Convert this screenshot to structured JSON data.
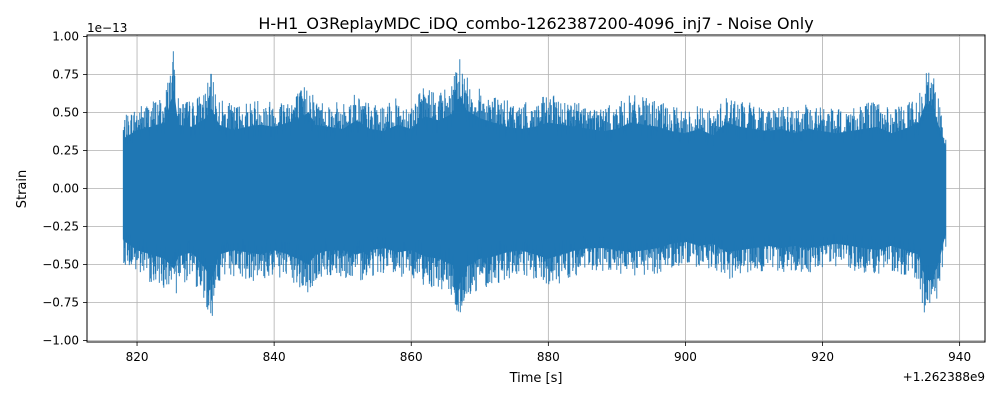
{
  "chart_data": {
    "type": "line",
    "title": "H-H1_O3ReplayMDC_iDQ_combo-1262387200-4096_inj7 - Noise Only",
    "xlabel": "Time [s]",
    "ylabel": "Strain",
    "x_offset_label": "+1.262388e9",
    "y_scale_label": "1e−13",
    "xlim": [
      812.7,
      943.7
    ],
    "ylim": [
      -1.01,
      1.01
    ],
    "x_ticks": [
      820,
      840,
      860,
      880,
      900,
      920,
      940
    ],
    "x_tick_labels": [
      "820",
      "840",
      "860",
      "880",
      "900",
      "920",
      "940"
    ],
    "y_ticks": [
      -1.0,
      -0.75,
      -0.5,
      -0.25,
      0.0,
      0.25,
      0.5,
      0.75,
      1.0
    ],
    "y_tick_labels": [
      "−1.00",
      "−0.75",
      "−0.50",
      "−0.25",
      "0.00",
      "0.25",
      "0.50",
      "0.75",
      "1.00"
    ],
    "grid": true,
    "line_color": "#1f77b4",
    "series": [
      {
        "x_range": [
          818.0,
          938.0
        ],
        "envelope": {
          "x": [
            818,
            820,
            822,
            824,
            825.4,
            826,
            828,
            830,
            830.8,
            832,
            834,
            836,
            838,
            840,
            842,
            844,
            845,
            846,
            848,
            850,
            852,
            854,
            856,
            858,
            860,
            862,
            864,
            866,
            867.1,
            868,
            870,
            872,
            874,
            876,
            878,
            880,
            882,
            884,
            886,
            888,
            890,
            892,
            894,
            896,
            898,
            900,
            902,
            904,
            906,
            908,
            910,
            912,
            914,
            916,
            918,
            920,
            922,
            924,
            926,
            928,
            930,
            932,
            934,
            935,
            936,
            937,
            938
          ],
          "upper": [
            0.47,
            0.55,
            0.58,
            0.62,
            0.93,
            0.6,
            0.58,
            0.66,
            0.76,
            0.6,
            0.55,
            0.58,
            0.6,
            0.58,
            0.62,
            0.66,
            0.72,
            0.6,
            0.58,
            0.56,
            0.64,
            0.56,
            0.54,
            0.6,
            0.56,
            0.68,
            0.64,
            0.7,
            0.88,
            0.74,
            0.66,
            0.62,
            0.58,
            0.56,
            0.58,
            0.62,
            0.6,
            0.58,
            0.56,
            0.54,
            0.56,
            0.62,
            0.6,
            0.58,
            0.54,
            0.52,
            0.56,
            0.5,
            0.62,
            0.58,
            0.56,
            0.54,
            0.56,
            0.52,
            0.56,
            0.54,
            0.52,
            0.54,
            0.56,
            0.58,
            0.52,
            0.56,
            0.62,
            0.8,
            0.78,
            0.58,
            0.38
          ],
          "lower": [
            -0.49,
            -0.58,
            -0.62,
            -0.66,
            -0.76,
            -0.64,
            -0.6,
            -0.76,
            -0.88,
            -0.62,
            -0.58,
            -0.6,
            -0.62,
            -0.58,
            -0.62,
            -0.68,
            -0.72,
            -0.62,
            -0.58,
            -0.58,
            -0.62,
            -0.58,
            -0.56,
            -0.6,
            -0.58,
            -0.64,
            -0.66,
            -0.72,
            -0.91,
            -0.74,
            -0.66,
            -0.64,
            -0.6,
            -0.58,
            -0.62,
            -0.66,
            -0.62,
            -0.58,
            -0.56,
            -0.56,
            -0.58,
            -0.6,
            -0.58,
            -0.56,
            -0.52,
            -0.5,
            -0.54,
            -0.52,
            -0.6,
            -0.58,
            -0.56,
            -0.54,
            -0.56,
            -0.54,
            -0.56,
            -0.54,
            -0.52,
            -0.54,
            -0.56,
            -0.58,
            -0.54,
            -0.58,
            -0.62,
            -0.86,
            -0.86,
            -0.68,
            -0.42
          ]
        }
      }
    ]
  }
}
